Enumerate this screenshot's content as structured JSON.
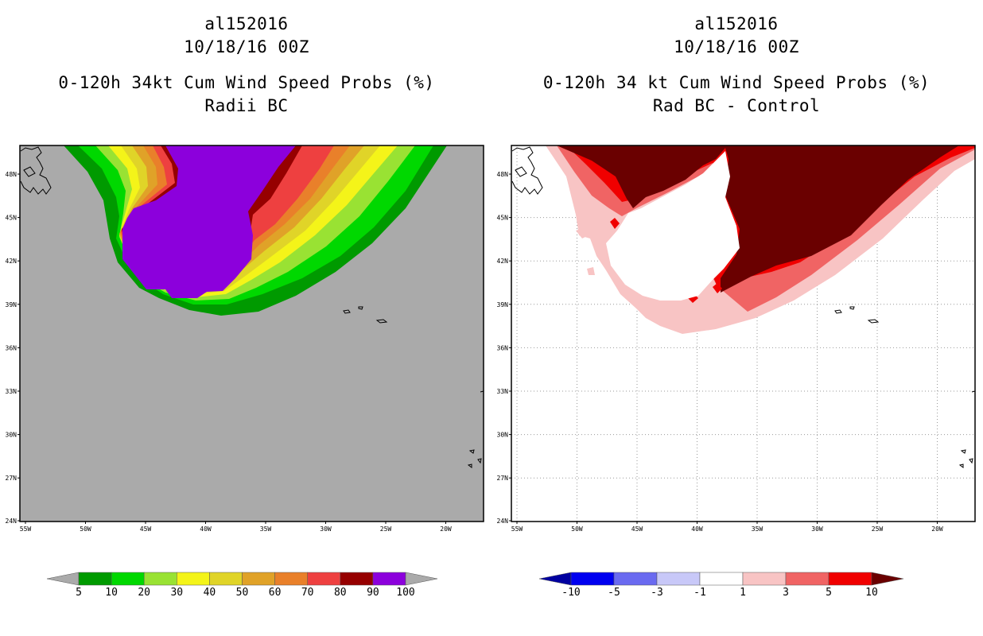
{
  "left_panel": {
    "storm_id": "al152016",
    "date": "10/18/16 00Z",
    "title": "0-120h 34kt Cum Wind Speed Probs (%)",
    "subtitle": "Radii BC",
    "colorbar": {
      "labels": [
        "5",
        "10",
        "20",
        "30",
        "40",
        "50",
        "60",
        "70",
        "80",
        "90",
        "100"
      ],
      "colors": [
        "#aaaaaa",
        "#009a00",
        "#00d800",
        "#99e233",
        "#f4f419",
        "#e0d428",
        "#e0a228",
        "#e9802a",
        "#ee4040",
        "#960000",
        "#8c00dc",
        "#aaaaaa"
      ]
    }
  },
  "right_panel": {
    "storm_id": "al152016",
    "date": "10/18/16 00Z",
    "title": "0-120h 34 kt Cum Wind Speed Probs (%)",
    "subtitle": "Rad BC - Control",
    "colorbar": {
      "labels": [
        "-10",
        "-5",
        "-3",
        "-1",
        "1",
        "3",
        "5",
        "10"
      ],
      "colors": [
        "#0000a0",
        "#0000f0",
        "#6a6af0",
        "#c8c8f8",
        "#ffffff",
        "#f8c4c4",
        "#f06464",
        "#f00000",
        "#6a0000"
      ]
    }
  },
  "axes": {
    "lat_labels": [
      "48N",
      "45N",
      "42N",
      "39N",
      "36N",
      "33N",
      "30N",
      "27N",
      "24N"
    ],
    "lon_labels": [
      "55W",
      "50W",
      "45W",
      "40W",
      "35W",
      "30W",
      "25W",
      "20W"
    ]
  },
  "colors": {
    "land_missing": "#aaaaaa",
    "purple": "#8c00dc",
    "dark_red": "#6a0000",
    "grid": "#999999"
  }
}
